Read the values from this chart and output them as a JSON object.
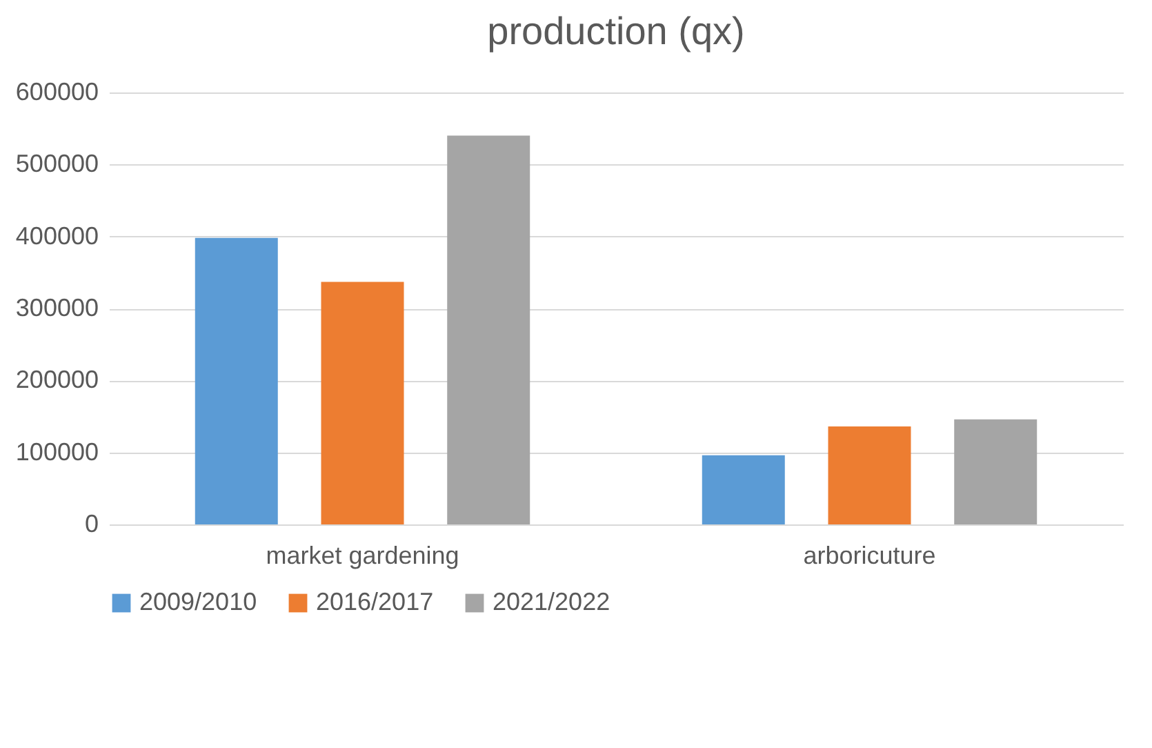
{
  "chart_data": {
    "type": "bar",
    "title": "production (qx)",
    "categories": [
      "market gardening",
      "arboricuture"
    ],
    "series": [
      {
        "name": "2009/2010",
        "color": "#5b9bd5",
        "values": [
          398000,
          96000
        ]
      },
      {
        "name": "2016/2017",
        "color": "#ed7d31",
        "values": [
          337000,
          136000
        ]
      },
      {
        "name": "2021/2022",
        "color": "#a5a5a5",
        "values": [
          540000,
          146000
        ]
      }
    ],
    "ylim": [
      0,
      600000
    ],
    "yticks": [
      0,
      100000,
      200000,
      300000,
      400000,
      500000,
      600000
    ],
    "grid": "y",
    "legend": "bottom"
  }
}
